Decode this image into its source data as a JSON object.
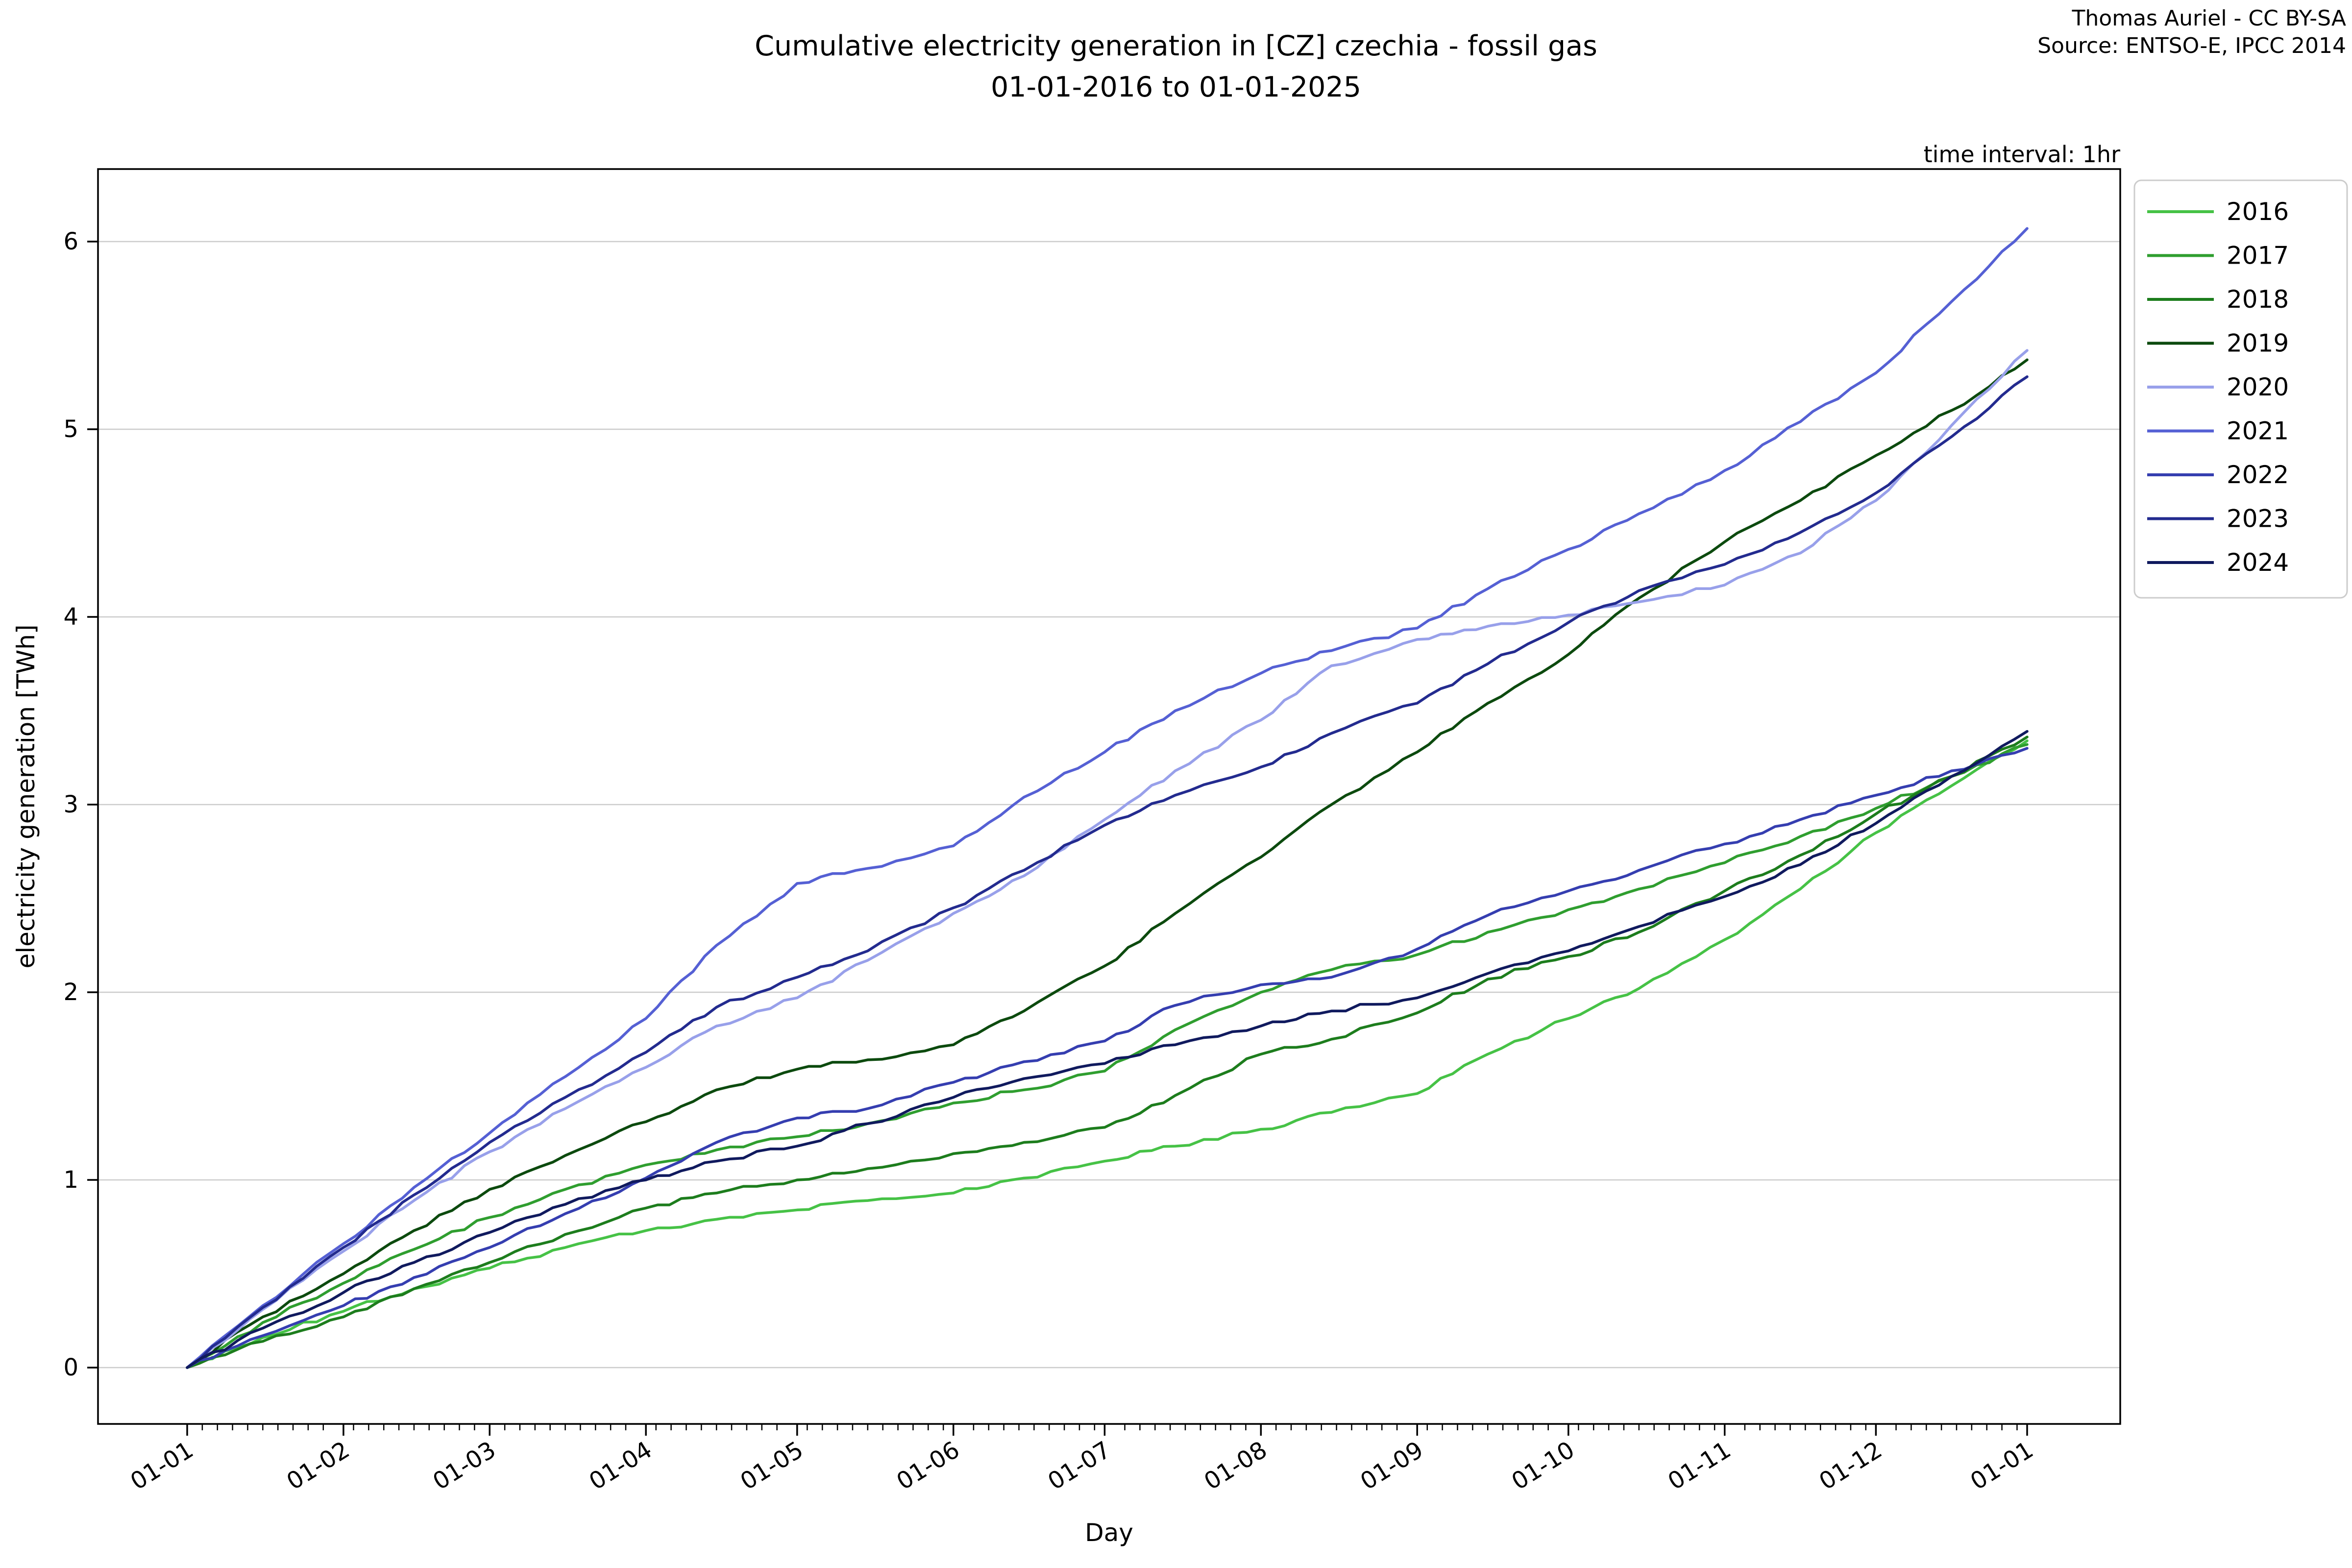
{
  "header": {
    "title_line1": "Cumulative electricity generation in [CZ] czechia - fossil gas",
    "title_line2": "01-01-2016 to 01-01-2025",
    "attribution_line1": "Thomas Auriel - CC BY-SA",
    "attribution_line2": "Source: ENTSO-E, IPCC 2014",
    "time_interval_label": "time interval: 1hr"
  },
  "chart_data": {
    "type": "line",
    "title": "Cumulative electricity generation in [CZ] czechia - fossil gas 01-01-2016 to 01-01-2025",
    "xlabel": "Day",
    "ylabel": "electricity generation [TWh]",
    "legend_position": "right",
    "grid": "horizontal",
    "ylim": [
      -0.32,
      6.38
    ],
    "ytick_labels": [
      "0",
      "1",
      "2",
      "3",
      "4",
      "5",
      "6"
    ],
    "yticks": [
      0,
      1,
      2,
      3,
      4,
      5,
      6
    ],
    "xtick_labels": [
      "01-01",
      "01-02",
      "01-03",
      "01-04",
      "01-05",
      "01-06",
      "01-07",
      "01-08",
      "01-09",
      "01-10",
      "01-11",
      "01-12",
      "01-01"
    ],
    "xtick_days": [
      0,
      31,
      60,
      91,
      121,
      152,
      182,
      213,
      244,
      274,
      305,
      335,
      365
    ],
    "days": [
      0,
      15,
      31,
      45,
      60,
      75,
      91,
      105,
      121,
      135,
      152,
      166,
      182,
      196,
      213,
      227,
      244,
      258,
      274,
      288,
      305,
      320,
      335,
      350,
      365
    ],
    "series": [
      {
        "name": "2016",
        "color": "#46c246",
        "values": [
          0,
          0.16,
          0.3,
          0.42,
          0.53,
          0.64,
          0.73,
          0.79,
          0.84,
          0.89,
          0.93,
          1.01,
          1.1,
          1.18,
          1.27,
          1.36,
          1.46,
          1.67,
          1.86,
          2.02,
          2.28,
          2.55,
          2.85,
          3.1,
          3.34
        ]
      },
      {
        "name": "2017",
        "color": "#2f9e2f",
        "values": [
          0,
          0.24,
          0.45,
          0.63,
          0.8,
          0.95,
          1.08,
          1.16,
          1.23,
          1.3,
          1.41,
          1.48,
          1.58,
          1.8,
          2.0,
          2.12,
          2.2,
          2.32,
          2.44,
          2.55,
          2.69,
          2.83,
          2.98,
          3.15,
          3.32
        ]
      },
      {
        "name": "2018",
        "color": "#1d7d1d",
        "values": [
          0,
          0.14,
          0.27,
          0.42,
          0.56,
          0.71,
          0.85,
          0.93,
          1.0,
          1.06,
          1.14,
          1.2,
          1.28,
          1.45,
          1.67,
          1.75,
          1.89,
          2.07,
          2.19,
          2.32,
          2.54,
          2.73,
          2.95,
          3.15,
          3.36
        ]
      },
      {
        "name": "2019",
        "color": "#0c4a0e",
        "values": [
          0,
          0.27,
          0.5,
          0.73,
          0.95,
          1.13,
          1.31,
          1.48,
          1.59,
          1.64,
          1.72,
          1.9,
          2.14,
          2.42,
          2.72,
          3.0,
          3.28,
          3.54,
          3.8,
          4.1,
          4.4,
          4.62,
          4.86,
          5.1,
          5.37
        ]
      },
      {
        "name": "2020",
        "color": "#98a0ea",
        "values": [
          0,
          0.31,
          0.62,
          0.89,
          1.15,
          1.38,
          1.6,
          1.82,
          1.97,
          2.17,
          2.42,
          2.62,
          2.92,
          3.18,
          3.45,
          3.74,
          3.88,
          3.95,
          4.01,
          4.08,
          4.17,
          4.34,
          4.62,
          5.02,
          5.42
        ]
      },
      {
        "name": "2021",
        "color": "#5560d4",
        "values": [
          0,
          0.33,
          0.66,
          0.96,
          1.25,
          1.55,
          1.86,
          2.25,
          2.58,
          2.66,
          2.78,
          3.04,
          3.28,
          3.5,
          3.7,
          3.82,
          3.94,
          4.15,
          4.36,
          4.55,
          4.78,
          5.04,
          5.3,
          5.68,
          6.07
        ]
      },
      {
        "name": "2022",
        "color": "#353eb0",
        "values": [
          0,
          0.17,
          0.33,
          0.48,
          0.64,
          0.82,
          1.01,
          1.2,
          1.33,
          1.38,
          1.52,
          1.63,
          1.74,
          1.93,
          2.04,
          2.08,
          2.23,
          2.41,
          2.54,
          2.65,
          2.79,
          2.92,
          3.05,
          3.18,
          3.3
        ]
      },
      {
        "name": "2023",
        "color": "#232b8f",
        "values": [
          0,
          0.32,
          0.64,
          0.92,
          1.2,
          1.44,
          1.68,
          1.92,
          2.08,
          2.22,
          2.45,
          2.65,
          2.89,
          3.05,
          3.2,
          3.38,
          3.54,
          3.75,
          3.97,
          4.14,
          4.28,
          4.45,
          4.66,
          4.96,
          5.28
        ]
      },
      {
        "name": "2024",
        "color": "#101a5e",
        "values": [
          0,
          0.21,
          0.4,
          0.56,
          0.72,
          0.87,
          1.0,
          1.1,
          1.18,
          1.3,
          1.44,
          1.54,
          1.62,
          1.72,
          1.82,
          1.9,
          1.97,
          2.1,
          2.22,
          2.35,
          2.51,
          2.68,
          2.9,
          3.15,
          3.39
        ]
      }
    ]
  }
}
